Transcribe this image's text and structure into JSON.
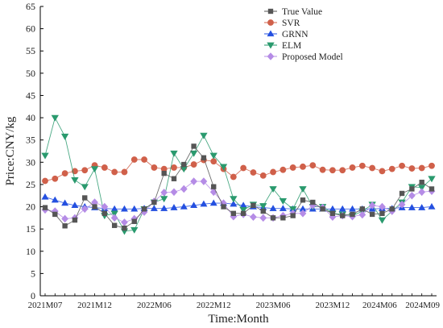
{
  "chart_data": {
    "type": "line",
    "xlabel": "Time:Month",
    "ylabel": "Price:CNY/kg",
    "ylim": [
      0,
      65
    ],
    "yticks": [
      0,
      5,
      10,
      15,
      20,
      25,
      30,
      35,
      40,
      45,
      50,
      55,
      60,
      65
    ],
    "x_tick_labels": [
      {
        "label": "2021M07",
        "index": 0
      },
      {
        "label": "2021M12",
        "index": 5
      },
      {
        "label": "2022M06",
        "index": 11
      },
      {
        "label": "2022M12",
        "index": 17
      },
      {
        "label": "2023M06",
        "index": 23
      },
      {
        "label": "2023M12",
        "index": 29
      },
      {
        "label": "2024M06",
        "index": 35
      },
      {
        "label": "2024M09",
        "index": 38
      }
    ],
    "legend_position": "top-right",
    "series": [
      {
        "name": "True Value",
        "color": "#555555",
        "marker": "square",
        "values": [
          19.8,
          18.3,
          15.7,
          17.0,
          22.0,
          20.0,
          18.5,
          15.8,
          15.2,
          16.7,
          19.5,
          21.0,
          27.5,
          26.3,
          29.5,
          33.6,
          31.0,
          24.5,
          20.0,
          18.5,
          18.5,
          20.3,
          19.0,
          17.5,
          17.5,
          18.0,
          21.5,
          21.0,
          19.5,
          18.5,
          18.0,
          18.3,
          19.5,
          18.3,
          18.5,
          19.5,
          23.0,
          24.0,
          25.5,
          24.0
        ]
      },
      {
        "name": "SVR",
        "color": "#d0604a",
        "marker": "circle",
        "values": [
          25.8,
          26.3,
          27.5,
          28.0,
          28.2,
          29.3,
          28.8,
          27.8,
          27.8,
          30.6,
          30.6,
          28.8,
          28.5,
          28.8,
          28.8,
          29.5,
          30.5,
          30.2,
          28.5,
          26.7,
          28.7,
          27.7,
          27.0,
          27.8,
          28.3,
          28.8,
          29.0,
          29.3,
          28.3,
          28.2,
          28.2,
          28.8,
          29.2,
          28.7,
          28.0,
          28.5,
          29.2,
          28.6,
          28.7,
          29.2
        ]
      },
      {
        "name": "GRNN",
        "color": "#2450e0",
        "marker": "triangle-up",
        "values": [
          22.2,
          21.5,
          20.8,
          20.3,
          20.0,
          19.8,
          19.6,
          19.5,
          19.5,
          19.5,
          19.6,
          19.6,
          19.6,
          19.8,
          20.0,
          20.3,
          20.6,
          20.8,
          20.8,
          20.6,
          20.3,
          20.0,
          19.8,
          19.6,
          19.6,
          19.5,
          19.5,
          19.5,
          19.5,
          19.5,
          19.5,
          19.5,
          19.5,
          19.5,
          19.6,
          19.6,
          19.8,
          19.8,
          19.8,
          20.0
        ]
      },
      {
        "name": "ELM",
        "color": "#2a9a6e",
        "marker": "triangle-down",
        "values": [
          31.5,
          40.0,
          35.8,
          26.0,
          24.5,
          28.5,
          18.0,
          18.5,
          14.5,
          14.8,
          19.5,
          21.0,
          21.8,
          32.0,
          28.5,
          32.0,
          36.0,
          31.5,
          29.0,
          21.8,
          19.3,
          20.5,
          20.2,
          24.0,
          21.3,
          19.5,
          24.0,
          20.0,
          20.0,
          18.5,
          18.3,
          18.0,
          19.0,
          20.5,
          17.0,
          19.0,
          21.0,
          24.5,
          24.3,
          26.3
        ]
      },
      {
        "name": "Proposed Model",
        "color": "#b58ce6",
        "marker": "diamond",
        "values": [
          19.3,
          19.0,
          17.3,
          17.5,
          19.5,
          21.0,
          20.0,
          17.5,
          16.5,
          17.3,
          18.8,
          21.2,
          23.2,
          23.3,
          24.0,
          25.7,
          25.7,
          23.3,
          20.8,
          17.8,
          18.3,
          17.7,
          17.5,
          17.5,
          18.0,
          18.5,
          18.5,
          20.3,
          19.8,
          17.7,
          18.0,
          17.8,
          18.2,
          20.3,
          20.0,
          19.0,
          20.5,
          22.5,
          23.3,
          23.5
        ]
      }
    ]
  }
}
